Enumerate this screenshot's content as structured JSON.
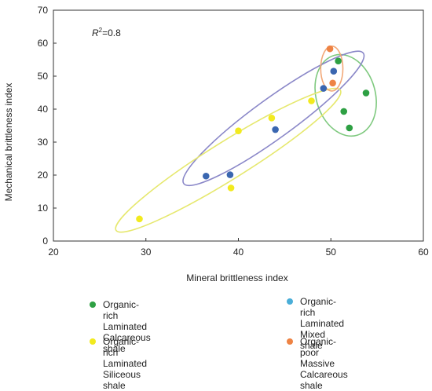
{
  "chart_data": {
    "type": "scatter",
    "title": "",
    "xlabel": "Mineral brittleness index",
    "ylabel": "Mechanical brittleness index",
    "xlim": [
      20,
      60
    ],
    "ylim": [
      0,
      70
    ],
    "xticks": [
      "20",
      "30",
      "40",
      "50",
      "60"
    ],
    "yticks": [
      "0",
      "10",
      "20",
      "30",
      "40",
      "50",
      "60",
      "70"
    ],
    "grid": false,
    "legend_position": "bottom",
    "annotation": {
      "prefix": "R",
      "sup": "2",
      "text": "=0.8"
    },
    "series": [
      {
        "name": "Organic-rich Laminated\nCalcareous shale",
        "color": "#2ea043",
        "points": [
          [
            50.8,
            54.6
          ],
          [
            53.8,
            44.9
          ],
          [
            51.4,
            39.3
          ],
          [
            52.0,
            34.3
          ]
        ]
      },
      {
        "name": "Organic-rich Laminated\nMixed shale",
        "color": "#4aaed8",
        "points": []
      },
      {
        "name": "Organic-rich Laminated\nSiliceous shale",
        "color": "#f2ea1e",
        "points": [
          [
            29.3,
            6.7
          ],
          [
            39.2,
            16.1
          ],
          [
            40.0,
            33.4
          ],
          [
            43.6,
            37.3
          ],
          [
            47.9,
            42.5
          ]
        ]
      },
      {
        "name": "Organic-poor Massive\nCalcareous shale",
        "color": "#ee8344",
        "points": [
          [
            49.9,
            58.3
          ],
          [
            50.2,
            47.9
          ]
        ]
      },
      {
        "name": "",
        "color": "#3a66b0",
        "in_legend": false,
        "points": [
          [
            36.5,
            19.7
          ],
          [
            39.1,
            20.1
          ],
          [
            44.0,
            33.8
          ],
          [
            49.2,
            46.3
          ],
          [
            50.3,
            51.5
          ]
        ]
      }
    ],
    "ellipses": [
      {
        "color": "#7fc97f",
        "cx": 51.6,
        "cy": 44.2,
        "rx": 3.2,
        "ry": 12.6,
        "angle": -16
      },
      {
        "color": "#8a87c8",
        "cx": 43.8,
        "cy": 37.2,
        "rx": 12.0,
        "ry": 6.0,
        "angle": -36
      },
      {
        "color": "#e6e86e",
        "cx": 38.9,
        "cy": 24.5,
        "rx": 14.3,
        "ry": 5.7,
        "angle": -32
      },
      {
        "color": "#f2a878",
        "cx": 50.1,
        "cy": 52.3,
        "rx": 1.2,
        "ry": 6.8,
        "angle": 0
      }
    ]
  }
}
